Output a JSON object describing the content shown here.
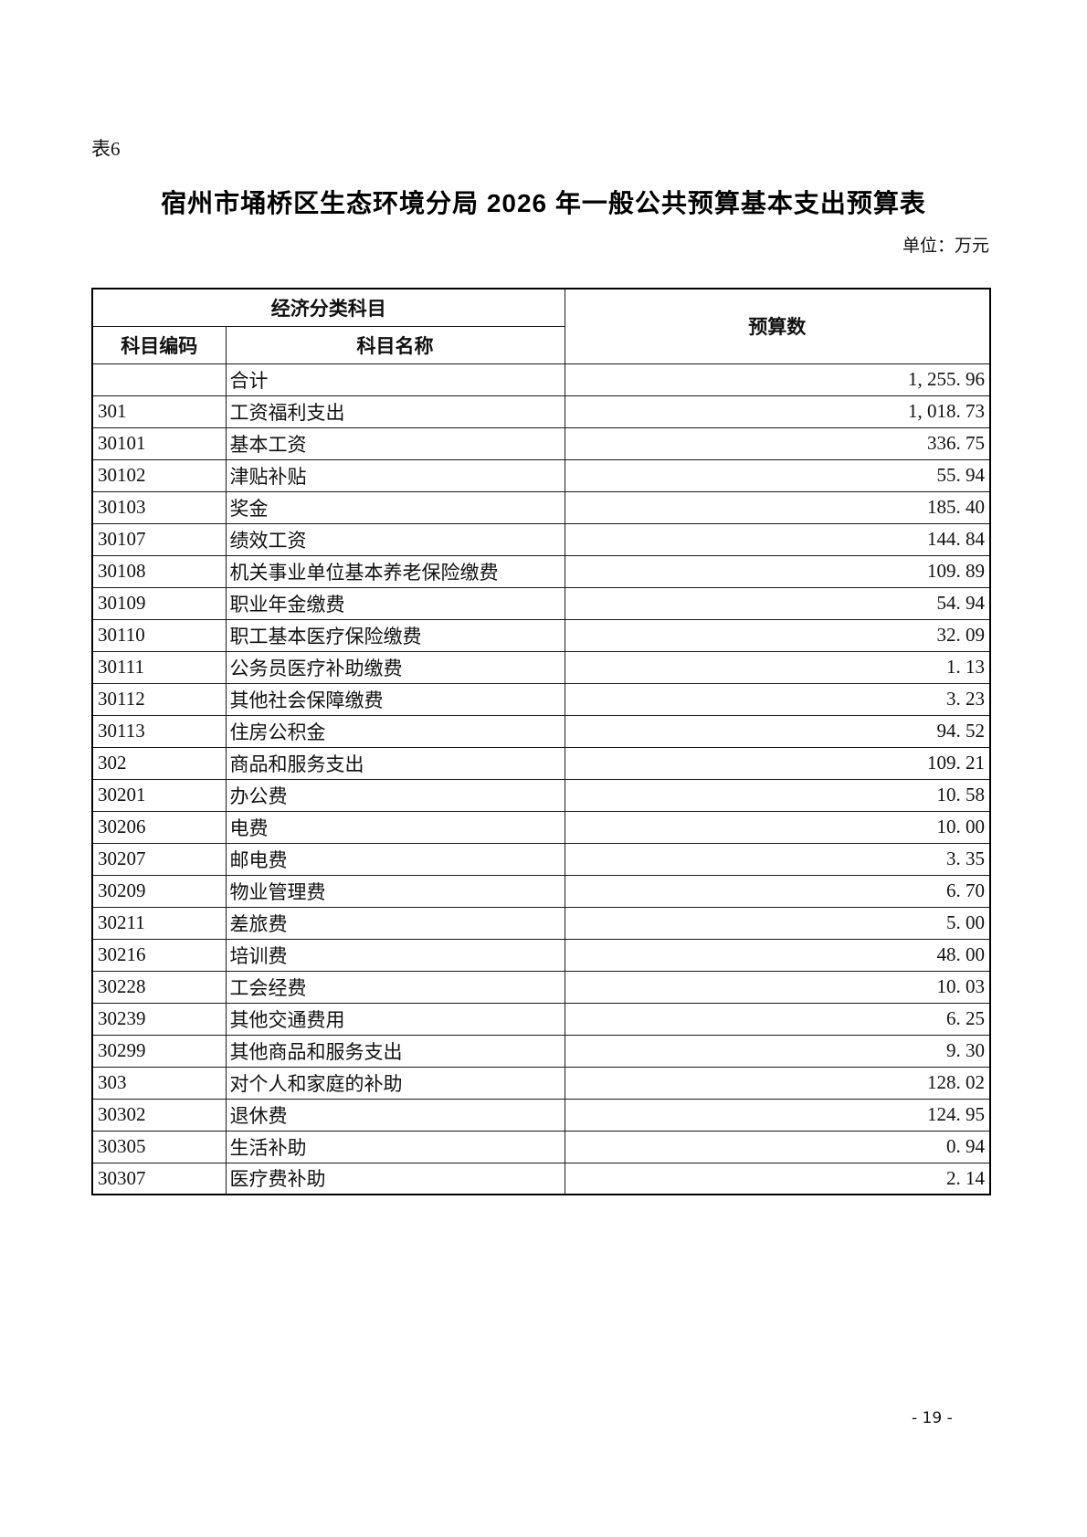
{
  "page": {
    "table_label": "表6",
    "title": "宿州市埇桥区生态环境分局 2026 年一般公共预算基本支出预算表",
    "unit_note": "单位：万元",
    "page_number": "- 19 -"
  },
  "table": {
    "header": {
      "group": "经济分类科目",
      "col_code": "科目编码",
      "col_name": "科目名称",
      "col_budget": "预算数"
    },
    "rows": [
      {
        "code": "",
        "name": "合计",
        "value": "1, 255. 96"
      },
      {
        "code": "301",
        "name": "工资福利支出",
        "value": "1, 018. 73"
      },
      {
        "code": "30101",
        "name": "基本工资",
        "value": "336. 75"
      },
      {
        "code": "30102",
        "name": "津贴补贴",
        "value": "55. 94"
      },
      {
        "code": "30103",
        "name": "奖金",
        "value": "185. 40"
      },
      {
        "code": "30107",
        "name": "绩效工资",
        "value": "144. 84"
      },
      {
        "code": "30108",
        "name": "机关事业单位基本养老保险缴费",
        "value": "109. 89"
      },
      {
        "code": "30109",
        "name": "职业年金缴费",
        "value": "54. 94"
      },
      {
        "code": "30110",
        "name": "职工基本医疗保险缴费",
        "value": "32. 09"
      },
      {
        "code": "30111",
        "name": "公务员医疗补助缴费",
        "value": "1. 13"
      },
      {
        "code": "30112",
        "name": "其他社会保障缴费",
        "value": "3. 23"
      },
      {
        "code": "30113",
        "name": "住房公积金",
        "value": "94. 52"
      },
      {
        "code": "302",
        "name": "商品和服务支出",
        "value": "109. 21"
      },
      {
        "code": "30201",
        "name": "办公费",
        "value": "10. 58"
      },
      {
        "code": "30206",
        "name": "电费",
        "value": "10. 00"
      },
      {
        "code": "30207",
        "name": "邮电费",
        "value": "3. 35"
      },
      {
        "code": "30209",
        "name": "物业管理费",
        "value": "6. 70"
      },
      {
        "code": "30211",
        "name": "差旅费",
        "value": "5. 00"
      },
      {
        "code": "30216",
        "name": "培训费",
        "value": "48. 00"
      },
      {
        "code": "30228",
        "name": "工会经费",
        "value": "10. 03"
      },
      {
        "code": "30239",
        "name": "其他交通费用",
        "value": "6. 25"
      },
      {
        "code": "30299",
        "name": "其他商品和服务支出",
        "value": "9. 30"
      },
      {
        "code": "303",
        "name": "对个人和家庭的补助",
        "value": "128. 02"
      },
      {
        "code": "30302",
        "name": "退休费",
        "value": "124. 95"
      },
      {
        "code": "30305",
        "name": "生活补助",
        "value": "0. 94"
      },
      {
        "code": "30307",
        "name": "医疗费补助",
        "value": "2. 14"
      }
    ]
  }
}
